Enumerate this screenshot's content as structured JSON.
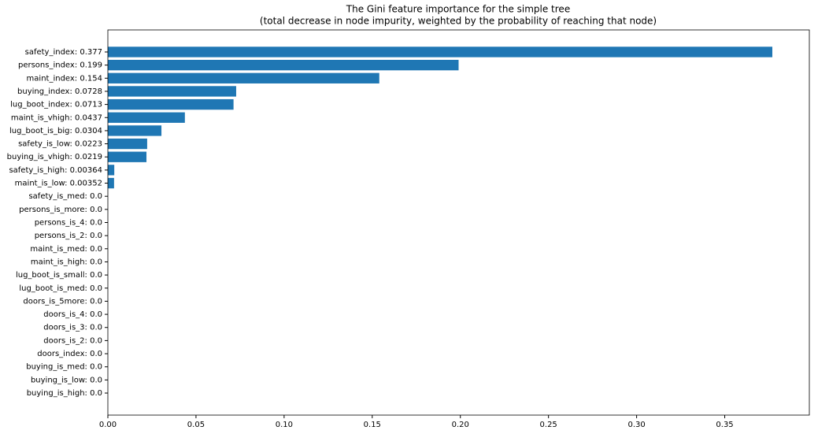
{
  "chart_data": {
    "type": "barh",
    "title": "The Gini feature importance for the simple tree",
    "subtitle": "(total decrease in node impurity, weighted by the probability of reaching that node)",
    "categories": [
      "safety_index: 0.377",
      "persons_index: 0.199",
      "maint_index: 0.154",
      "buying_index: 0.0728",
      "lug_boot_index: 0.0713",
      "maint_is_vhigh: 0.0437",
      "lug_boot_is_big: 0.0304",
      "safety_is_low: 0.0223",
      "buying_is_vhigh: 0.0219",
      "safety_is_high: 0.00364",
      "maint_is_low: 0.00352",
      "safety_is_med: 0.0",
      "persons_is_more: 0.0",
      "persons_is_4: 0.0",
      "persons_is_2: 0.0",
      "maint_is_med: 0.0",
      "maint_is_high: 0.0",
      "lug_boot_is_small: 0.0",
      "lug_boot_is_med: 0.0",
      "doors_is_5more: 0.0",
      "doors_is_4: 0.0",
      "doors_is_3: 0.0",
      "doors_is_2: 0.0",
      "doors_index: 0.0",
      "buying_is_med: 0.0",
      "buying_is_low: 0.0",
      "buying_is_high: 0.0"
    ],
    "values": [
      0.377,
      0.199,
      0.154,
      0.0728,
      0.0713,
      0.0437,
      0.0304,
      0.0223,
      0.0219,
      0.00364,
      0.00352,
      0,
      0,
      0,
      0,
      0,
      0,
      0,
      0,
      0,
      0,
      0,
      0,
      0,
      0,
      0,
      0
    ],
    "color": "#1f77b4",
    "xlim": [
      0,
      0.398
    ],
    "xticks": [
      {
        "value": 0,
        "label": "0.00"
      },
      {
        "value": 0.05,
        "label": "0.05"
      },
      {
        "value": 0.1,
        "label": "0.10"
      },
      {
        "value": 0.15,
        "label": "0.15"
      },
      {
        "value": 0.2,
        "label": "0.20"
      },
      {
        "value": 0.25,
        "label": "0.25"
      },
      {
        "value": 0.3,
        "label": "0.30"
      },
      {
        "value": 0.35,
        "label": "0.35"
      }
    ],
    "grid": false
  }
}
